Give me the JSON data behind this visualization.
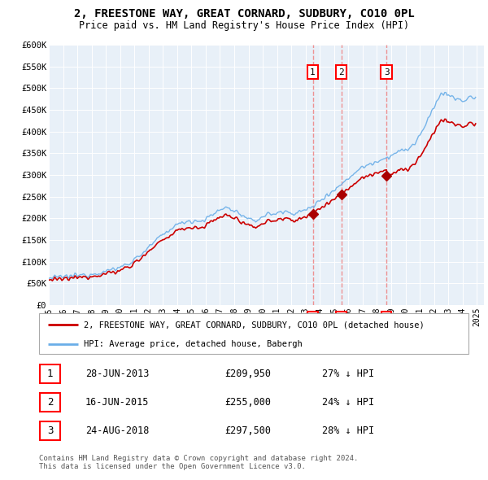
{
  "title": "2, FREESTONE WAY, GREAT CORNARD, SUDBURY, CO10 0PL",
  "subtitle": "Price paid vs. HM Land Registry's House Price Index (HPI)",
  "title_fontsize": 10,
  "subtitle_fontsize": 8.5,
  "ylim": [
    0,
    600000
  ],
  "yticks": [
    0,
    50000,
    100000,
    150000,
    200000,
    250000,
    300000,
    350000,
    400000,
    450000,
    500000,
    550000,
    600000
  ],
  "ytick_labels": [
    "£0",
    "£50K",
    "£100K",
    "£150K",
    "£200K",
    "£250K",
    "£300K",
    "£350K",
    "£400K",
    "£450K",
    "£500K",
    "£550K",
    "£600K"
  ],
  "hpi_color": "#6aaee8",
  "property_color": "#cc0000",
  "sale_marker_color": "#aa0000",
  "vline_color": "#ee8888",
  "vline_fill": "#ffeaea",
  "chart_bg": "#e8f0f8",
  "sale_dates_float": [
    2013.5,
    2015.5,
    2018.67
  ],
  "sale_prices": [
    209950,
    255000,
    297500
  ],
  "sale_labels": [
    "1",
    "2",
    "3"
  ],
  "legend_property_label": "2, FREESTONE WAY, GREAT CORNARD, SUDBURY, CO10 0PL (detached house)",
  "legend_hpi_label": "HPI: Average price, detached house, Babergh",
  "footer": "Contains HM Land Registry data © Crown copyright and database right 2024.\nThis data is licensed under the Open Government Licence v3.0.",
  "table_rows": [
    {
      "num": "1",
      "date": "28-JUN-2013",
      "price": "£209,950",
      "pct": "27% ↓ HPI"
    },
    {
      "num": "2",
      "date": "16-JUN-2015",
      "price": "£255,000",
      "pct": "24% ↓ HPI"
    },
    {
      "num": "3",
      "date": "24-AUG-2018",
      "price": "£297,500",
      "pct": "28% ↓ HPI"
    }
  ]
}
